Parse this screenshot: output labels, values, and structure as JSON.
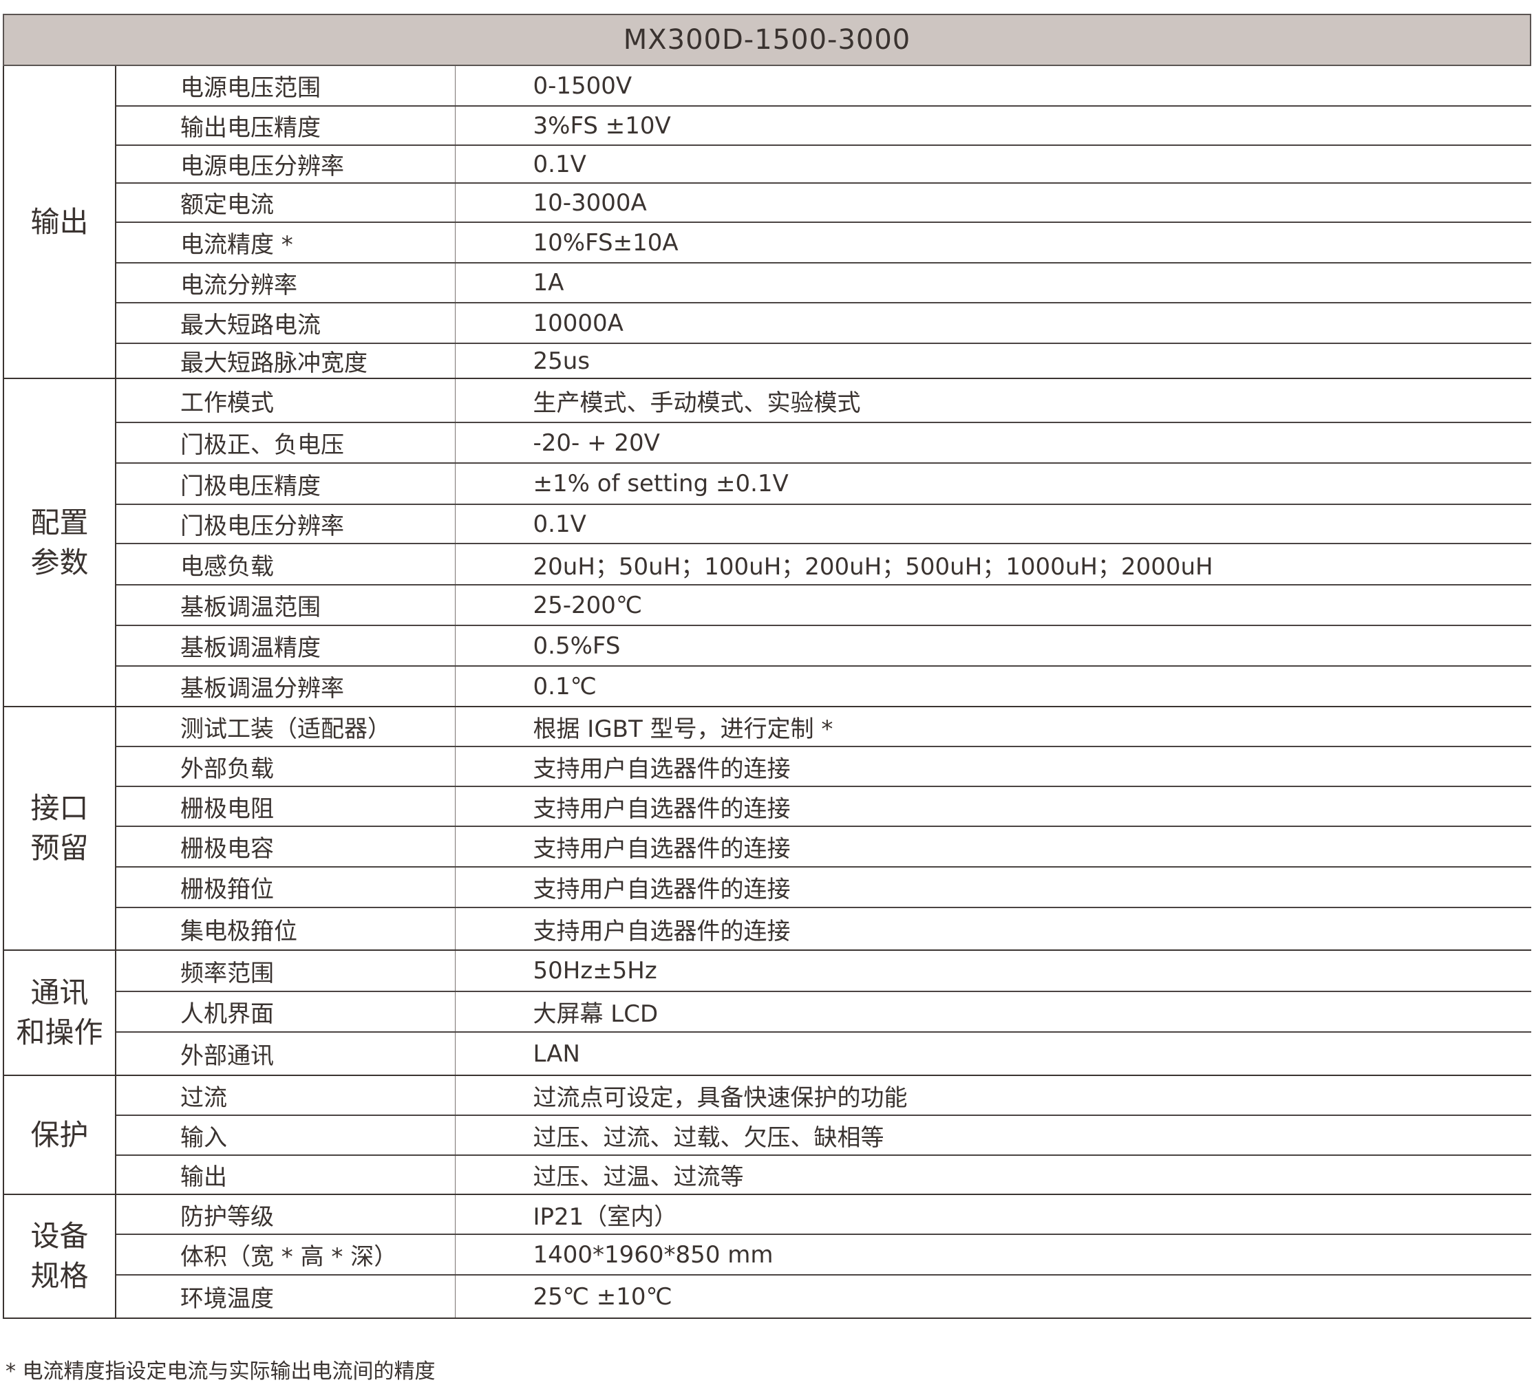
{
  "title": "MX300D-1500-3000",
  "groups": [
    {
      "name": "输出",
      "rows": [
        {
          "label": "电源电压范围",
          "value": "0-1500V"
        },
        {
          "label": "输出电压精度",
          "value": "3%FS ±10V"
        },
        {
          "label": "电源电压分辨率",
          "value": "0.1V"
        },
        {
          "label": "额定电流",
          "value": "10-3000A"
        },
        {
          "label": "电流精度 *",
          "value": "10%FS±10A"
        },
        {
          "label": "电流分辨率",
          "value": "1A"
        },
        {
          "label": "最大短路电流",
          "value": "10000A"
        },
        {
          "label": "最大短路脉冲宽度",
          "value": "25us"
        }
      ]
    },
    {
      "name": "配置\n参数",
      "rows": [
        {
          "label": "工作模式",
          "value": "生产模式、手动模式、实验模式"
        },
        {
          "label": "门极正、负电压",
          "value": "-20- + 20V"
        },
        {
          "label": "门极电压精度",
          "value": "±1% of setting ±0.1V"
        },
        {
          "label": "门极电压分辨率",
          "value": "0.1V"
        },
        {
          "label": "电感负载",
          "value": "20uH；50uH；100uH；200uH；500uH；1000uH；2000uH"
        },
        {
          "label": "基板调温范围",
          "value": "25-200℃"
        },
        {
          "label": "基板调温精度",
          "value": "0.5%FS"
        },
        {
          "label": "基板调温分辨率",
          "value": "0.1℃"
        }
      ]
    },
    {
      "name": "接口\n预留",
      "rows": [
        {
          "label": "测试工装（适配器）",
          "value": "根据 IGBT 型号，进行定制 *"
        },
        {
          "label": "外部负载",
          "value": "支持用户自选器件的连接"
        },
        {
          "label": "栅极电阻",
          "value": "支持用户自选器件的连接"
        },
        {
          "label": "栅极电容",
          "value": "支持用户自选器件的连接"
        },
        {
          "label": "栅极箝位",
          "value": "支持用户自选器件的连接"
        },
        {
          "label": "集电极箝位",
          "value": "支持用户自选器件的连接"
        }
      ]
    },
    {
      "name": "通讯\n和操作",
      "rows": [
        {
          "label": "频率范围",
          "value": "50Hz±5Hz"
        },
        {
          "label": "人机界面",
          "value": "大屏幕 LCD"
        },
        {
          "label": "外部通讯",
          "value": "LAN"
        }
      ]
    },
    {
      "name": "保护",
      "rows": [
        {
          "label": "过流",
          "value": "过流点可设定，具备快速保护的功能"
        },
        {
          "label": "输入",
          "value": "过压、过流、过载、欠压、缺相等"
        },
        {
          "label": "输出",
          "value": "过压、过温、过流等"
        }
      ]
    },
    {
      "name": "设备\n规格",
      "rows": [
        {
          "label": "防护等级",
          "value": "IP21（室内）"
        },
        {
          "label": "体积（宽 * 高 * 深）",
          "value": "1400*1960*850 mm"
        },
        {
          "label": "环境温度",
          "value": "25℃ ±10℃"
        }
      ]
    }
  ],
  "footnote": "* 电流精度指设定电流与实际输出电流间的精度"
}
